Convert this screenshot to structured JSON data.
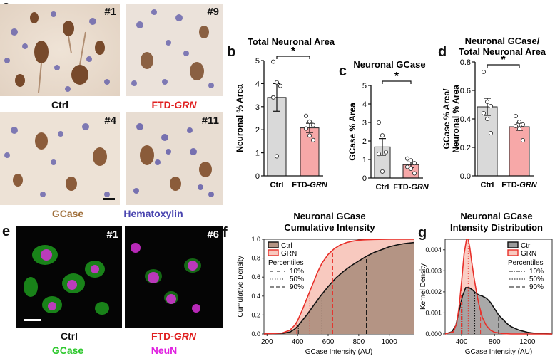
{
  "panels": {
    "a": "a",
    "b": "b",
    "c": "c",
    "d": "d",
    "e": "e",
    "f": "f",
    "g": "g"
  },
  "micrographs_a": {
    "tags": [
      "#1",
      "#9",
      "#4",
      "#11"
    ],
    "ctrl_label": "Ctrl",
    "grn_label_prefix": "FTD-",
    "grn_label_italic": "GRN",
    "legend_gcase": "GCase",
    "legend_hematoxylin": "Hematoxylin",
    "colors": {
      "gcase": "#a0703c",
      "hematoxylin": "#4a45b0",
      "grn": "#e02020"
    }
  },
  "micrographs_e": {
    "tags": [
      "#1",
      "#6"
    ],
    "ctrl_label": "Ctrl",
    "grn_label_prefix": "FTD-",
    "grn_label_italic": "GRN",
    "legend_gcase": "GCase",
    "legend_neun": "NeuN",
    "colors": {
      "gcase": "#2ec82e",
      "neun": "#e020e0"
    }
  },
  "chart_data": [
    {
      "id": "b",
      "type": "bar",
      "title": "Total Neuronal Area",
      "ylabel": "Neuronal % Area",
      "ylim": [
        0,
        5
      ],
      "yticks": [
        0,
        1,
        2,
        3,
        4,
        5
      ],
      "categories": [
        "Ctrl",
        "FTD-GRN"
      ],
      "cat_prefix": [
        "Ctrl",
        "FTD-"
      ],
      "cat_italic": [
        "",
        "GRN"
      ],
      "values": [
        3.4,
        2.08
      ],
      "errors": [
        0.6,
        0.2
      ],
      "points": [
        [
          4.95,
          4.05,
          3.9,
          3.4,
          0.85
        ],
        [
          2.6,
          2.35,
          2.2,
          2.05,
          1.75,
          1.55
        ]
      ],
      "significance": "*",
      "colors": [
        "#d9d9d9",
        "#f7a8a8"
      ]
    },
    {
      "id": "c",
      "type": "bar",
      "title": "Neuronal GCase",
      "ylabel": "GCase % Area",
      "ylim": [
        0,
        5
      ],
      "yticks": [
        0,
        1,
        2,
        3,
        4,
        5
      ],
      "categories": [
        "Ctrl",
        "FTD-GRN"
      ],
      "cat_prefix": [
        "Ctrl",
        "FTD-"
      ],
      "cat_italic": [
        "",
        "GRN"
      ],
      "values": [
        1.68,
        0.72
      ],
      "errors": [
        0.45,
        0.15
      ],
      "points": [
        [
          3.0,
          2.3,
          1.4,
          1.3,
          0.35
        ],
        [
          1.05,
          0.95,
          0.8,
          0.6,
          0.5,
          0.25
        ]
      ],
      "significance": "*",
      "colors": [
        "#d9d9d9",
        "#f7a8a8"
      ]
    },
    {
      "id": "d",
      "type": "bar",
      "title": "Neuronal GCase/ Total Neuronal Area",
      "title_lines": [
        "Neuronal GCase/",
        "Total Neuronal Area"
      ],
      "ylabel": "GCase % Area/ Neuronal % Area",
      "ylabel_lines": [
        "GCase % Area/",
        "Neuronal % Area"
      ],
      "ylim": [
        0,
        0.8
      ],
      "yticks": [
        0.0,
        0.2,
        0.4,
        0.6,
        0.8
      ],
      "ytick_labels": [
        "0.0",
        "0.2",
        "0.4",
        "0.6",
        "0.8"
      ],
      "categories": [
        "Ctrl",
        "FTD-GRN"
      ],
      "cat_prefix": [
        "Ctrl",
        "FTD-"
      ],
      "cat_italic": [
        "",
        "GRN"
      ],
      "values": [
        0.485,
        0.345
      ],
      "errors": [
        0.06,
        0.025
      ],
      "points": [
        [
          0.73,
          0.52,
          0.49,
          0.44,
          0.4,
          0.3
        ],
        [
          0.42,
          0.38,
          0.36,
          0.35,
          0.33,
          0.25
        ]
      ],
      "significance": "*",
      "colors": [
        "#d9d9d9",
        "#f7a8a8"
      ]
    },
    {
      "id": "f",
      "type": "area",
      "title": "Neuronal GCase Cumulative Intensity",
      "title_lines": [
        "Neuronal GCase",
        "Cumulative Intensity"
      ],
      "xlabel": "GCase Intensity (AU)",
      "ylabel": "Cumulative Density",
      "xlim": [
        180,
        1160
      ],
      "ylim": [
        0,
        1.0
      ],
      "xticks": [
        200,
        400,
        600,
        800,
        1000
      ],
      "yticks": [
        0.0,
        0.2,
        0.4,
        0.6,
        0.8,
        1.0
      ],
      "ytick_labels": [
        "0.0",
        "0.2",
        "0.4",
        "0.6",
        "0.8",
        "1.0"
      ],
      "series": [
        {
          "name": "Ctrl",
          "color": "#111111",
          "fill": "#b49484",
          "x": [
            180,
            300,
            350,
            380,
            400,
            430,
            460,
            500,
            550,
            600,
            650,
            700,
            750,
            800,
            850,
            900,
            950,
            1000,
            1050,
            1100,
            1160
          ],
          "y": [
            0,
            0.005,
            0.02,
            0.05,
            0.08,
            0.14,
            0.2,
            0.29,
            0.4,
            0.5,
            0.59,
            0.66,
            0.72,
            0.77,
            0.82,
            0.86,
            0.89,
            0.92,
            0.94,
            0.955,
            0.965
          ],
          "percentiles": [
            405,
            560,
            850
          ]
        },
        {
          "name": "GRN",
          "color": "#e8302a",
          "fill": "#f8c9bf",
          "x": [
            180,
            300,
            350,
            380,
            400,
            430,
            460,
            500,
            530,
            560,
            600,
            640,
            680,
            720,
            760,
            800,
            850,
            900,
            1000,
            1100,
            1160
          ],
          "y": [
            0,
            0.01,
            0.04,
            0.09,
            0.14,
            0.25,
            0.37,
            0.53,
            0.65,
            0.75,
            0.84,
            0.9,
            0.94,
            0.965,
            0.98,
            0.99,
            0.995,
            0.998,
            1.0,
            1.0,
            1.0
          ],
          "percentiles": [
            395,
            480,
            630
          ]
        }
      ],
      "legend": {
        "entries": [
          "Ctrl",
          "GRN"
        ],
        "percentile_title": "Percentiles",
        "percentile_entries": [
          "10%",
          "50%",
          "90%"
        ],
        "position": "top-left"
      }
    },
    {
      "id": "g",
      "type": "area",
      "title": "Neuronal GCase Intensity Distribution",
      "title_lines": [
        "Neuronal GCase",
        "Intensity Distribution"
      ],
      "xlabel": "GCase Intensity (AU)",
      "ylabel": "Kernel Density",
      "xlim": [
        200,
        1500
      ],
      "ylim": [
        0,
        0.0045
      ],
      "xticks": [
        400,
        800,
        1200
      ],
      "yticks": [
        0.0,
        0.001,
        0.002,
        0.003,
        0.004
      ],
      "ytick_labels": [
        "0.000",
        "0.001",
        "0.002",
        "0.003",
        "0.004"
      ],
      "series": [
        {
          "name": "Ctrl",
          "color": "#111111",
          "fill": "#9a9a9a",
          "x": [
            200,
            280,
            330,
            370,
            410,
            450,
            490,
            530,
            570,
            610,
            650,
            700,
            750,
            800,
            850,
            900,
            950,
            1000,
            1100,
            1200,
            1300,
            1400,
            1500
          ],
          "y": [
            0,
            0.0001,
            0.0004,
            0.0011,
            0.0018,
            0.0022,
            0.0022,
            0.0021,
            0.00195,
            0.00185,
            0.0018,
            0.0017,
            0.0015,
            0.0012,
            0.0009,
            0.0007,
            0.0005,
            0.00035,
            0.00018,
            8e-05,
            3e-05,
            1e-05,
            0
          ],
          "percentiles": [
            405,
            560,
            850
          ]
        },
        {
          "name": "GRN",
          "color": "#e8302a",
          "fill": "#f8c9bf",
          "x": [
            200,
            300,
            340,
            370,
            400,
            430,
            460,
            480,
            500,
            520,
            550,
            580,
            610,
            650,
            700,
            750,
            800,
            900,
            1000,
            1200,
            1500
          ],
          "y": [
            0,
            0.0001,
            0.0005,
            0.0013,
            0.0025,
            0.0038,
            0.0045,
            0.0045,
            0.0041,
            0.0035,
            0.0027,
            0.002,
            0.0014,
            0.0008,
            0.0004,
            0.00018,
            8e-05,
            2e-05,
            0,
            0,
            0
          ],
          "percentiles": [
            395,
            480,
            630
          ]
        }
      ],
      "legend": {
        "entries": [
          "Ctrl",
          "GRN"
        ],
        "percentile_title": "Percentiles",
        "percentile_entries": [
          "10%",
          "50%",
          "90%"
        ],
        "position": "top-right"
      }
    }
  ]
}
